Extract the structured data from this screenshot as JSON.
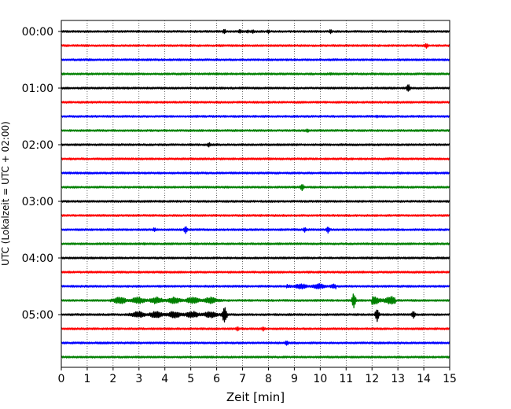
{
  "chart_data": {
    "type": "line",
    "subtype": "helicorder",
    "title": "",
    "xlabel": "Zeit  [min]",
    "ylabel": "UTC (Lokalzeit = UTC + 02:00)",
    "xlim": [
      0,
      15
    ],
    "x_ticks": [
      "0",
      "1",
      "2",
      "3",
      "4",
      "5",
      "6",
      "7",
      "8",
      "9",
      "10",
      "11",
      "12",
      "13",
      "14",
      "15"
    ],
    "y_ticks": [
      {
        "label": "00:00",
        "row": 0
      },
      {
        "label": "01:00",
        "row": 4
      },
      {
        "label": "02:00",
        "row": 8
      },
      {
        "label": "03:00",
        "row": 12
      },
      {
        "label": "04:00",
        "row": 16
      },
      {
        "label": "05:00",
        "row": 20
      }
    ],
    "row_interval_min": 15,
    "row_count": 24,
    "grid": "vertical dotted at each minute",
    "row_colors": [
      "#000000",
      "#ff0000",
      "#0000ff",
      "#008000"
    ],
    "events": [
      {
        "row": 0,
        "x": 6.3,
        "amp": 0.35
      },
      {
        "row": 0,
        "x": 6.9,
        "amp": 0.3
      },
      {
        "row": 0,
        "x": 7.2,
        "amp": 0.25
      },
      {
        "row": 0,
        "x": 7.4,
        "amp": 0.25
      },
      {
        "row": 0,
        "x": 8.0,
        "amp": 0.3
      },
      {
        "row": 0,
        "x": 10.4,
        "amp": 0.3
      },
      {
        "row": 1,
        "x": 14.1,
        "amp": 0.35
      },
      {
        "row": 3,
        "x": 10.4,
        "amp": 0.2
      },
      {
        "row": 4,
        "x": 13.4,
        "amp": 0.55
      },
      {
        "row": 6,
        "x": 12.2,
        "amp": 0.2
      },
      {
        "row": 7,
        "x": 9.5,
        "amp": 0.3
      },
      {
        "row": 8,
        "x": 5.7,
        "amp": 0.35
      },
      {
        "row": 11,
        "x": 9.3,
        "amp": 0.5
      },
      {
        "row": 14,
        "x": 3.6,
        "amp": 0.3
      },
      {
        "row": 14,
        "x": 4.8,
        "amp": 0.5
      },
      {
        "row": 14,
        "x": 9.4,
        "amp": 0.35
      },
      {
        "row": 14,
        "x": 10.3,
        "amp": 0.45
      },
      {
        "row": 15,
        "x": 3.2,
        "amp": 0.2
      },
      {
        "row": 19,
        "x": 11.3,
        "amp": 1.1
      },
      {
        "row": 20,
        "x": 6.3,
        "amp": 1.2
      },
      {
        "row": 20,
        "x": 12.2,
        "amp": 0.9
      },
      {
        "row": 20,
        "x": 13.6,
        "amp": 0.5
      },
      {
        "row": 21,
        "x": 6.8,
        "amp": 0.35
      },
      {
        "row": 21,
        "x": 7.8,
        "amp": 0.3
      },
      {
        "row": 22,
        "x": 8.7,
        "amp": 0.4
      }
    ],
    "noise_bursts": [
      {
        "row": 18,
        "x_start": 8.7,
        "x_end": 10.6,
        "amp": 0.35
      },
      {
        "row": 19,
        "x_start": 1.9,
        "x_end": 6.2,
        "amp": 0.45
      },
      {
        "row": 19,
        "x_start": 12.0,
        "x_end": 12.9,
        "amp": 0.55
      },
      {
        "row": 20,
        "x_start": 2.6,
        "x_end": 6.4,
        "amp": 0.45
      }
    ]
  }
}
